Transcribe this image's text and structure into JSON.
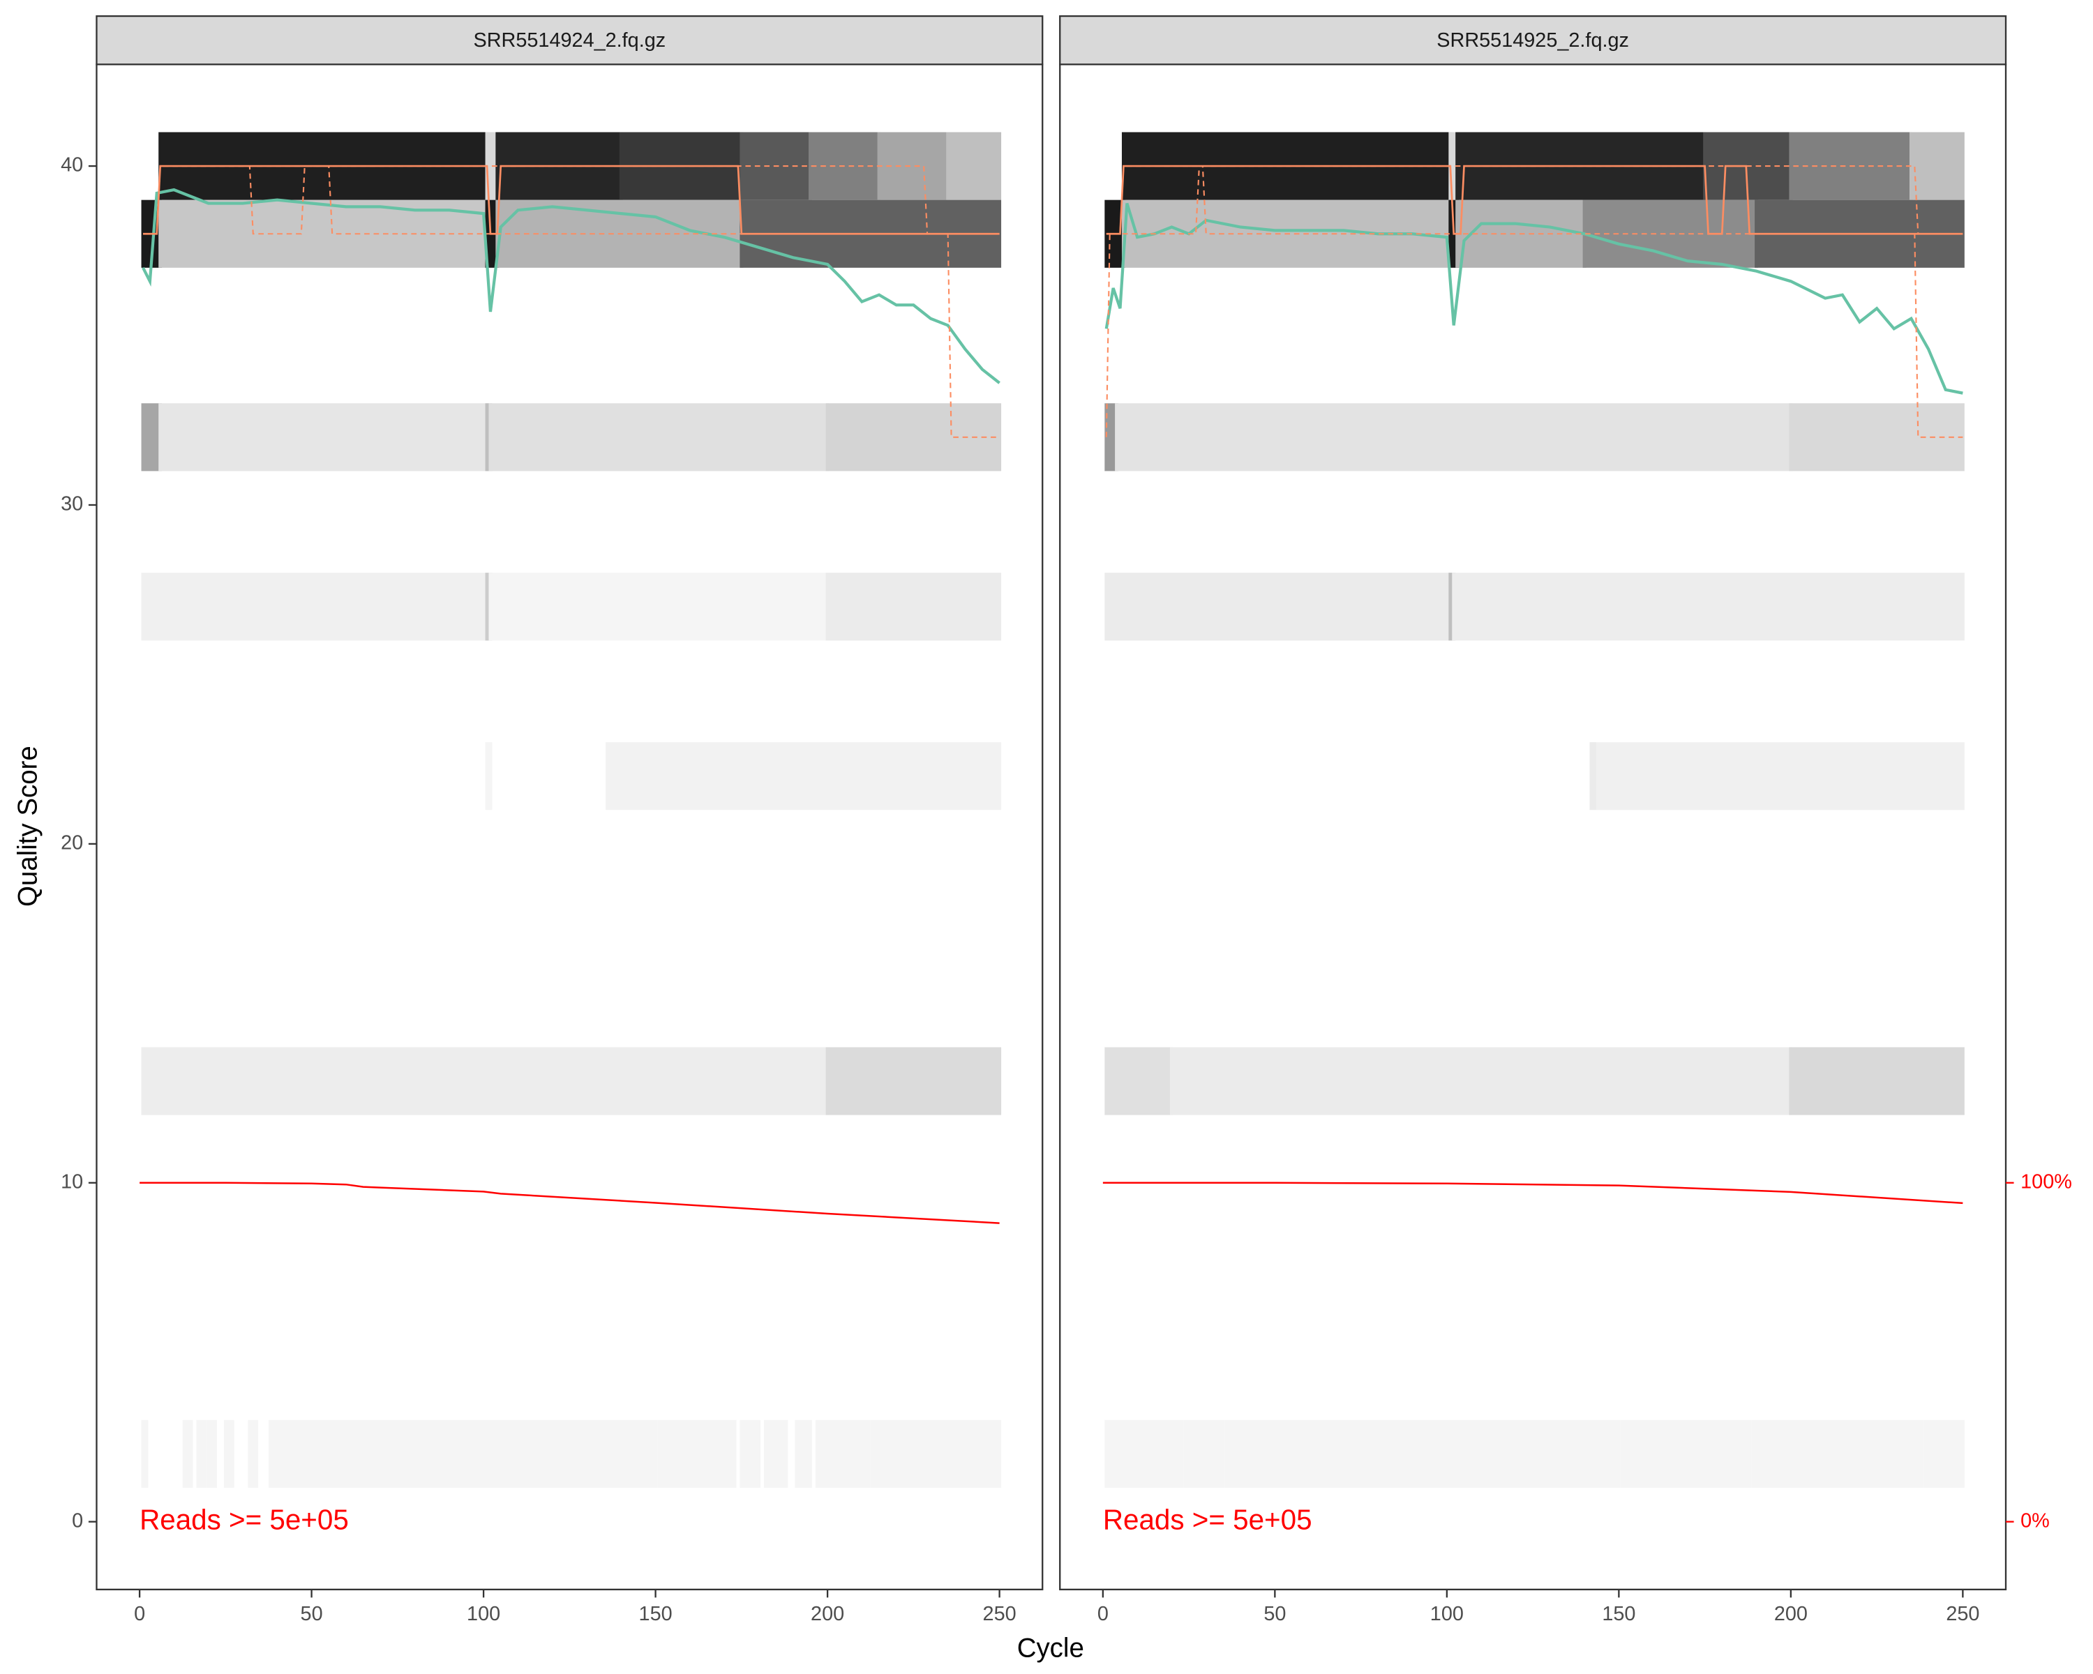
{
  "chart_data": {
    "type": "quality-profile",
    "xlabel": "Cycle",
    "ylabel": "Quality Score",
    "xlim": [
      -12.5,
      262.5
    ],
    "xticks": [
      0,
      50,
      100,
      150,
      200,
      250
    ],
    "ylim": [
      -2,
      43
    ],
    "yticks": [
      0,
      10,
      20,
      30,
      40
    ],
    "y2lim": [
      -20,
      430
    ],
    "y2ticks": [
      {
        "value": 0,
        "label": "0%"
      },
      {
        "value": 100,
        "label": "100%"
      }
    ],
    "y2color": "#ff0000",
    "tile_halfheight": 1,
    "panels": [
      {
        "title": "SRR5514924_2.fq.gz",
        "annotation": "Reads >=  5e+05",
        "tiles": [
          {
            "score": 40,
            "segments": [
              [
                6,
                101,
                0.12
              ],
              [
                101,
                104,
                0.85
              ],
              [
                104,
                140,
                0.15
              ],
              [
                140,
                175,
                0.22
              ],
              [
                175,
                195,
                0.35
              ],
              [
                195,
                215,
                0.5
              ],
              [
                215,
                235,
                0.65
              ],
              [
                235,
                250,
                0.75
              ]
            ]
          },
          {
            "score": 38,
            "segments": [
              [
                1,
                6,
                0.1
              ],
              [
                6,
                101,
                0.78
              ],
              [
                101,
                104,
                0.1
              ],
              [
                104,
                175,
                0.7
              ],
              [
                175,
                250,
                0.38
              ]
            ]
          },
          {
            "score": 32,
            "segments": [
              [
                1,
                6,
                0.65
              ],
              [
                6,
                101,
                0.9
              ],
              [
                101,
                102,
                0.75
              ],
              [
                102,
                200,
                0.88
              ],
              [
                200,
                250,
                0.83
              ]
            ]
          },
          {
            "score": 27,
            "segments": [
              [
                1,
                101,
                0.94
              ],
              [
                101,
                102,
                0.8
              ],
              [
                102,
                200,
                0.96
              ],
              [
                200,
                250,
                0.92
              ]
            ]
          },
          {
            "score": 22,
            "segments": [
              [
                101,
                102,
                0.96
              ],
              [
                136,
                250,
                0.95
              ]
            ]
          },
          {
            "score": 13,
            "segments": [
              [
                1,
                200,
                0.93
              ],
              [
                200,
                250,
                0.86
              ]
            ]
          },
          {
            "score": 2,
            "segments": [
              [
                1,
                2,
                0.96
              ],
              [
                13,
                15,
                0.96
              ],
              [
                17,
                19,
                0.96
              ],
              [
                20,
                22,
                0.96
              ],
              [
                25,
                27,
                0.96
              ],
              [
                32,
                34,
                0.96
              ],
              [
                38,
                150,
                0.96
              ],
              [
                151,
                173,
                0.96
              ],
              [
                175,
                180,
                0.96
              ],
              [
                182,
                188,
                0.96
              ],
              [
                191,
                195,
                0.96
              ],
              [
                197,
                212,
                0.96
              ],
              [
                213,
                250,
                0.96
              ]
            ]
          }
        ],
        "lines": [
          {
            "color": "#66c2a5",
            "x": [
              1,
              3,
              5,
              10,
              20,
              30,
              40,
              50,
              60,
              70,
              80,
              90,
              100,
              102,
              105,
              110,
              120,
              130,
              140,
              150,
              160,
              170,
              180,
              190,
              200,
              205,
              210,
              215,
              220,
              225,
              230,
              235,
              240,
              245,
              250
            ],
            "values": [
              37.0,
              36.6,
              39.2,
              39.3,
              38.9,
              38.9,
              39.0,
              38.9,
              38.8,
              38.8,
              38.7,
              38.7,
              38.6,
              35.7,
              38.2,
              38.7,
              38.8,
              38.7,
              38.6,
              38.5,
              38.1,
              37.9,
              37.6,
              37.3,
              37.1,
              36.6,
              36.0,
              36.2,
              35.9,
              35.9,
              35.5,
              35.3,
              34.6,
              34.0,
              33.6
            ]
          },
          {
            "color": "#fc8d62",
            "x": [
              1,
              5,
              6,
              101,
              102,
              104,
              105,
              174,
              175,
              250
            ],
            "values": [
              38,
              38,
              40,
              40,
              38,
              38,
              40,
              40,
              38,
              38
            ]
          },
          {
            "color": "#fc8d62",
            "dashed": true,
            "x": [
              1,
              5,
              6,
              32,
              33,
              47,
              48,
              55,
              56,
              235,
              236,
              250
            ],
            "values": [
              38,
              38,
              40,
              40,
              38,
              38,
              40,
              40,
              38,
              38,
              32,
              32
            ]
          },
          {
            "color": "#fc8d62",
            "dashed": true,
            "x": [
              1,
              5,
              6,
              228,
              229,
              250
            ],
            "values": [
              38,
              38,
              40,
              40,
              38,
              38
            ]
          },
          {
            "color": "#ff0000",
            "axis": "y2",
            "x": [
              0,
              25,
              50,
              60,
              65,
              70,
              100,
              105,
              150,
              200,
              250
            ],
            "values": [
              100,
              100,
              99.8,
              99.5,
              98.8,
              98.6,
              97.4,
              96.8,
              94.1,
              90.9,
              88.1
            ]
          }
        ]
      },
      {
        "title": "SRR5514925_2.fq.gz",
        "annotation": "Reads >=  5e+05",
        "tiles": [
          {
            "score": 40,
            "segments": [
              [
                6,
                101,
                0.12
              ],
              [
                101,
                103,
                0.85
              ],
              [
                103,
                175,
                0.15
              ],
              [
                175,
                200,
                0.3
              ],
              [
                200,
                235,
                0.5
              ],
              [
                235,
                250,
                0.75
              ]
            ]
          },
          {
            "score": 38,
            "segments": [
              [
                1,
                6,
                0.1
              ],
              [
                6,
                101,
                0.75
              ],
              [
                101,
                103,
                0.1
              ],
              [
                103,
                140,
                0.7
              ],
              [
                140,
                190,
                0.55
              ],
              [
                190,
                250,
                0.38
              ]
            ]
          },
          {
            "score": 32,
            "segments": [
              [
                1,
                4,
                0.6
              ],
              [
                4,
                200,
                0.89
              ],
              [
                200,
                250,
                0.85
              ]
            ]
          },
          {
            "score": 27,
            "segments": [
              [
                1,
                101,
                0.92
              ],
              [
                101,
                102,
                0.75
              ],
              [
                102,
                250,
                0.93
              ]
            ]
          },
          {
            "score": 22,
            "segments": [
              [
                142,
                143,
                0.92
              ],
              [
                144,
                250,
                0.94
              ]
            ]
          },
          {
            "score": 13,
            "segments": [
              [
                1,
                20,
                0.88
              ],
              [
                20,
                200,
                0.92
              ],
              [
                200,
                250,
                0.85
              ]
            ]
          },
          {
            "score": 2,
            "segments": [
              [
                1,
                5,
                0.96
              ],
              [
                6,
                23,
                0.96
              ],
              [
                24,
                30,
                0.96
              ],
              [
                31,
                35,
                0.96
              ],
              [
                36,
                150,
                0.96
              ],
              [
                151,
                188,
                0.96
              ],
              [
                189,
                212,
                0.96
              ],
              [
                213,
                238,
                0.96
              ],
              [
                239,
                244,
                0.96
              ],
              [
                245,
                250,
                0.96
              ]
            ]
          }
        ],
        "lines": [
          {
            "color": "#66c2a5",
            "x": [
              1,
              3,
              5,
              7,
              10,
              15,
              20,
              25,
              30,
              40,
              50,
              60,
              70,
              80,
              90,
              100,
              102,
              105,
              110,
              120,
              130,
              140,
              150,
              160,
              170,
              180,
              190,
              200,
              210,
              215,
              220,
              225,
              230,
              235,
              240,
              245,
              250
            ],
            "values": [
              35.2,
              36.4,
              35.8,
              38.9,
              37.9,
              38.0,
              38.2,
              38.0,
              38.4,
              38.2,
              38.1,
              38.1,
              38.1,
              38.0,
              38.0,
              37.9,
              35.3,
              37.8,
              38.3,
              38.3,
              38.2,
              38.0,
              37.7,
              37.5,
              37.2,
              37.1,
              36.9,
              36.6,
              36.1,
              36.2,
              35.4,
              35.8,
              35.2,
              35.5,
              34.6,
              33.4,
              33.3
            ]
          },
          {
            "color": "#fc8d62",
            "x": [
              1,
              5,
              6,
              101,
              102,
              104,
              105,
              175,
              176,
              180,
              181,
              187,
              188,
              250
            ],
            "values": [
              38,
              38,
              40,
              40,
              38,
              38,
              40,
              40,
              38,
              38,
              40,
              40,
              38,
              38
            ]
          },
          {
            "color": "#fc8d62",
            "dashed": true,
            "x": [
              1,
              2,
              3,
              27,
              28,
              29,
              30,
              236,
              237,
              250
            ],
            "values": [
              32,
              38,
              38,
              38,
              40,
              40,
              38,
              38,
              32,
              32
            ]
          },
          {
            "color": "#fc8d62",
            "dashed": true,
            "x": [
              1,
              5,
              6,
              236,
              237,
              250
            ],
            "values": [
              38,
              38,
              40,
              40,
              38,
              38
            ]
          },
          {
            "color": "#ff0000",
            "axis": "y2",
            "x": [
              0,
              50,
              100,
              150,
              200,
              250
            ],
            "values": [
              100,
              100,
              99.8,
              99.2,
              97.3,
              94.0
            ]
          }
        ]
      }
    ]
  }
}
